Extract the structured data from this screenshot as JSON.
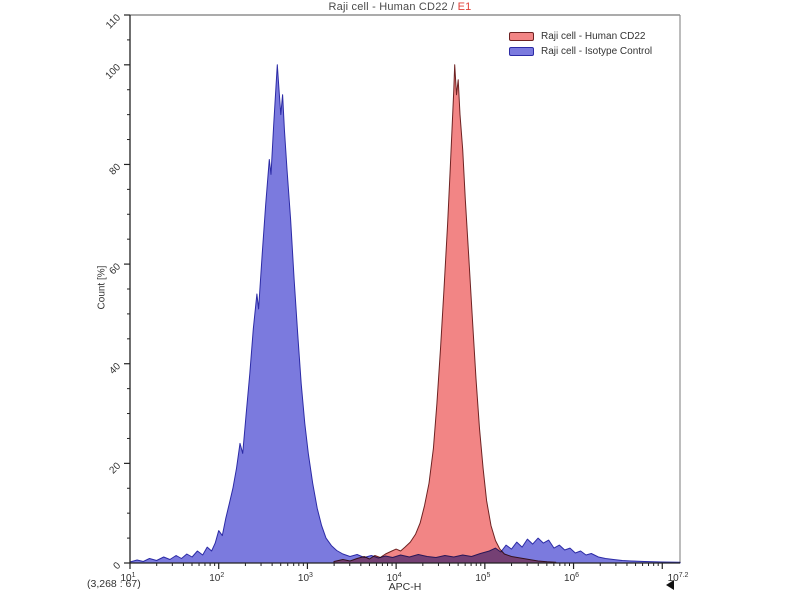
{
  "title": {
    "main": "Raji cell - Human CD22 / ",
    "highlight": "E1"
  },
  "colors": {
    "title_highlight": "#e04038",
    "axis_line": "#222222",
    "frame_line": "#8f8f8f",
    "tick_text": "#333333"
  },
  "legend": {
    "items": [
      {
        "label": "Raji cell - Human CD22",
        "fill": "#f28585",
        "border": "#6e2222"
      },
      {
        "label": "Raji cell - Isotype Control",
        "fill": "#7b7ade",
        "border": "#2c2ba6"
      }
    ]
  },
  "axes": {
    "x_label": "APC-H",
    "y_label": "Count [%]",
    "y_max": 110,
    "y_major_ticks": [
      0,
      20,
      40,
      60,
      80,
      100,
      110
    ],
    "y_minor_step": 5,
    "x_log_min": 1,
    "x_log_max": 7.2,
    "x_major_ticks": [
      1,
      2,
      3,
      4,
      5,
      6,
      7
    ],
    "x_tick_labels": [
      {
        "log": 1,
        "base": "10",
        "exp": "1"
      },
      {
        "log": 2,
        "base": "10",
        "exp": "2"
      },
      {
        "log": 3,
        "base": "10",
        "exp": "3"
      },
      {
        "log": 4,
        "base": "10",
        "exp": "4"
      },
      {
        "log": 5,
        "base": "10",
        "exp": "5"
      },
      {
        "log": 6,
        "base": "10",
        "exp": "6"
      },
      {
        "log": 7.2,
        "base": "10",
        "exp": "7.2"
      }
    ]
  },
  "footer": {
    "stats": "(3,268 : 67)"
  },
  "chart_data": {
    "type": "area",
    "x_scale": "log10",
    "title": "Raji cell - Human CD22 / E1",
    "xlabel": "APC-H",
    "ylabel": "Count [%]",
    "xlim_log10": [
      1,
      7.2
    ],
    "ylim": [
      0,
      110
    ],
    "grid": false,
    "legend_position": "top-right",
    "series": [
      {
        "name": "Raji cell - Human CD22",
        "fill": "#f28585",
        "stroke": "#6e2222",
        "peak_log10": 4.66,
        "peak_value_approx": 46000,
        "points": [
          [
            3.3,
            0.3
          ],
          [
            3.4,
            0.7
          ],
          [
            3.48,
            0.4
          ],
          [
            3.56,
            0.9
          ],
          [
            3.64,
            1.3
          ],
          [
            3.7,
            0.8
          ],
          [
            3.76,
            1.5
          ],
          [
            3.82,
            1.1
          ],
          [
            3.88,
            1.8
          ],
          [
            3.94,
            2.3
          ],
          [
            4.0,
            2.8
          ],
          [
            4.05,
            2.4
          ],
          [
            4.1,
            3.2
          ],
          [
            4.16,
            4.2
          ],
          [
            4.22,
            5.8
          ],
          [
            4.27,
            8.0
          ],
          [
            4.32,
            11.5
          ],
          [
            4.37,
            16.0
          ],
          [
            4.42,
            23.0
          ],
          [
            4.46,
            32.0
          ],
          [
            4.5,
            43.0
          ],
          [
            4.54,
            55.0
          ],
          [
            4.58,
            68.0
          ],
          [
            4.61,
            79.0
          ],
          [
            4.63,
            87.0
          ],
          [
            4.65,
            95.0
          ],
          [
            4.66,
            100.0
          ],
          [
            4.68,
            94.0
          ],
          [
            4.7,
            97.0
          ],
          [
            4.72,
            90.0
          ],
          [
            4.75,
            83.0
          ],
          [
            4.78,
            73.0
          ],
          [
            4.82,
            61.0
          ],
          [
            4.86,
            49.0
          ],
          [
            4.9,
            37.0
          ],
          [
            4.94,
            27.0
          ],
          [
            4.98,
            19.0
          ],
          [
            5.02,
            12.5
          ],
          [
            5.07,
            7.5
          ],
          [
            5.12,
            4.5
          ],
          [
            5.17,
            2.8
          ],
          [
            5.22,
            1.8
          ],
          [
            5.3,
            1.3
          ],
          [
            5.4,
            1.0
          ],
          [
            5.5,
            0.7
          ],
          [
            5.6,
            0.4
          ],
          [
            5.7,
            0.25
          ],
          [
            5.8,
            0.15
          ]
        ]
      },
      {
        "name": "Raji cell - Isotype Control",
        "fill": "#7b7ade",
        "stroke": "#2c2ba6",
        "peak_log10": 2.66,
        "peak_value_approx": 463,
        "points": [
          [
            1.0,
            0.2
          ],
          [
            1.08,
            0.6
          ],
          [
            1.15,
            0.3
          ],
          [
            1.22,
            0.9
          ],
          [
            1.3,
            0.5
          ],
          [
            1.38,
            1.2
          ],
          [
            1.45,
            0.7
          ],
          [
            1.52,
            1.5
          ],
          [
            1.58,
            0.9
          ],
          [
            1.64,
            1.8
          ],
          [
            1.7,
            1.2
          ],
          [
            1.76,
            2.4
          ],
          [
            1.82,
            1.6
          ],
          [
            1.87,
            3.2
          ],
          [
            1.92,
            2.4
          ],
          [
            1.96,
            4.0
          ],
          [
            2.0,
            6.5
          ],
          [
            2.04,
            5.5
          ],
          [
            2.08,
            9.0
          ],
          [
            2.12,
            12.0
          ],
          [
            2.16,
            15.0
          ],
          [
            2.2,
            19.0
          ],
          [
            2.24,
            24.0
          ],
          [
            2.27,
            22.0
          ],
          [
            2.31,
            30.0
          ],
          [
            2.35,
            38.0
          ],
          [
            2.39,
            47.0
          ],
          [
            2.43,
            54.0
          ],
          [
            2.45,
            51.0
          ],
          [
            2.49,
            62.0
          ],
          [
            2.53,
            72.0
          ],
          [
            2.57,
            81.0
          ],
          [
            2.59,
            78.0
          ],
          [
            2.62,
            88.0
          ],
          [
            2.64,
            94.0
          ],
          [
            2.66,
            100.0
          ],
          [
            2.68,
            95.0
          ],
          [
            2.7,
            90.0
          ],
          [
            2.72,
            94.0
          ],
          [
            2.74,
            87.0
          ],
          [
            2.77,
            79.0
          ],
          [
            2.81,
            69.0
          ],
          [
            2.85,
            57.0
          ],
          [
            2.89,
            46.0
          ],
          [
            2.93,
            36.0
          ],
          [
            2.97,
            28.0
          ],
          [
            3.01,
            22.0
          ],
          [
            3.06,
            16.0
          ],
          [
            3.11,
            11.0
          ],
          [
            3.16,
            7.5
          ],
          [
            3.21,
            5.0
          ],
          [
            3.27,
            3.5
          ],
          [
            3.33,
            2.5
          ],
          [
            3.4,
            1.8
          ],
          [
            3.48,
            1.3
          ],
          [
            3.56,
            1.7
          ],
          [
            3.64,
            1.1
          ],
          [
            3.72,
            1.5
          ],
          [
            3.8,
            1.0
          ],
          [
            3.88,
            1.4
          ],
          [
            3.96,
            1.1
          ],
          [
            4.05,
            1.6
          ],
          [
            4.15,
            1.2
          ],
          [
            4.25,
            1.7
          ],
          [
            4.35,
            1.3
          ],
          [
            4.45,
            1.1
          ],
          [
            4.55,
            1.5
          ],
          [
            4.65,
            1.2
          ],
          [
            4.75,
            1.6
          ],
          [
            4.85,
            1.3
          ],
          [
            4.95,
            1.9
          ],
          [
            5.05,
            2.4
          ],
          [
            5.12,
            3.0
          ],
          [
            5.18,
            2.2
          ],
          [
            5.24,
            3.6
          ],
          [
            5.3,
            2.8
          ],
          [
            5.36,
            4.2
          ],
          [
            5.42,
            3.2
          ],
          [
            5.48,
            4.8
          ],
          [
            5.54,
            3.8
          ],
          [
            5.6,
            5.0
          ],
          [
            5.66,
            4.0
          ],
          [
            5.72,
            4.6
          ],
          [
            5.78,
            3.0
          ],
          [
            5.84,
            3.6
          ],
          [
            5.9,
            2.6
          ],
          [
            5.96,
            3.0
          ],
          [
            6.02,
            2.0
          ],
          [
            6.08,
            2.4
          ],
          [
            6.14,
            1.6
          ],
          [
            6.2,
            1.9
          ],
          [
            6.28,
            1.2
          ],
          [
            6.36,
            0.9
          ],
          [
            6.45,
            0.7
          ],
          [
            6.55,
            0.5
          ],
          [
            6.65,
            0.4
          ],
          [
            6.8,
            0.3
          ],
          [
            7.0,
            0.2
          ],
          [
            7.2,
            0.15
          ]
        ]
      }
    ]
  }
}
